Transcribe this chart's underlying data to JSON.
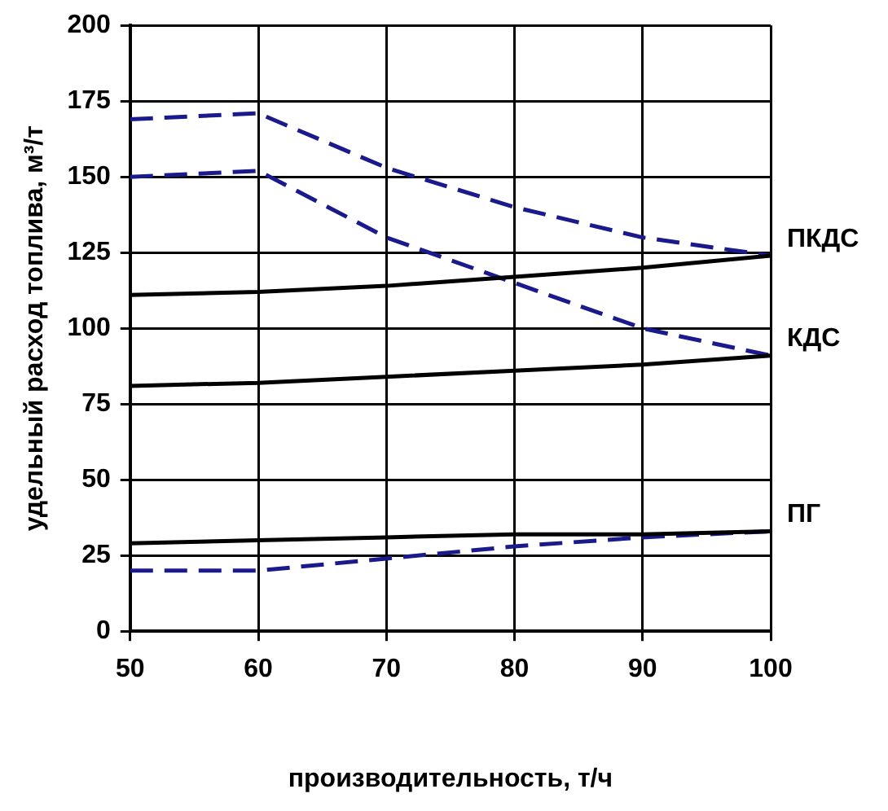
{
  "chart_data": {
    "type": "line",
    "xlabel": "производительность, т/ч",
    "ylabel": "удельный расход топлива, м³/т",
    "x": [
      50,
      60,
      70,
      80,
      90,
      100
    ],
    "series": [
      {
        "name": "ПКДС",
        "color": "#000000",
        "line_style": "solid",
        "values": [
          111,
          112,
          114,
          117,
          120,
          124
        ]
      },
      {
        "color": "#1a1a8c",
        "line_style": "dashed",
        "values": [
          169,
          171,
          153,
          140,
          130,
          124
        ]
      },
      {
        "name": "КДС",
        "color": "#000000",
        "line_style": "solid",
        "values": [
          81,
          82,
          84,
          86,
          88,
          91
        ]
      },
      {
        "color": "#1a1a8c",
        "line_style": "dashed",
        "values": [
          150,
          152,
          130,
          115,
          100,
          91
        ]
      },
      {
        "name": "ПГ",
        "color": "#000000",
        "line_style": "solid",
        "values": [
          29,
          30,
          31,
          32,
          32,
          33
        ]
      },
      {
        "color": "#1a1a8c",
        "line_style": "dashed",
        "values": [
          20,
          20,
          24,
          28,
          31,
          33
        ]
      }
    ],
    "xlim": [
      50,
      100
    ],
    "xticks": [
      50,
      60,
      70,
      80,
      90,
      100
    ],
    "ylim": [
      0,
      200
    ],
    "yticks": [
      0,
      25,
      50,
      75,
      100,
      125,
      150,
      175,
      200
    ],
    "grid": true,
    "marker": "none",
    "legend": false
  }
}
